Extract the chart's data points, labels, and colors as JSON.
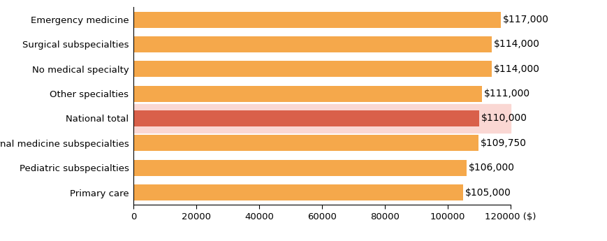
{
  "categories": [
    "Primary care",
    "Pediatric subspecialties",
    "Internal medicine subspecialties",
    "National total",
    "Other specialties",
    "No medical specialty",
    "Surgical subspecialties",
    "Emergency medicine"
  ],
  "values": [
    105000,
    106000,
    109750,
    110000,
    111000,
    114000,
    114000,
    117000
  ],
  "labels": [
    "$105,000",
    "$106,000",
    "$109,750",
    "$110,000",
    "$111,000",
    "$114,000",
    "$114,000",
    "$117,000"
  ],
  "bar_colors": [
    "#F5A84B",
    "#F5A84B",
    "#F5A84B",
    "#D9604A",
    "#F5A84B",
    "#F5A84B",
    "#F5A84B",
    "#F5A84B"
  ],
  "highlight_index": 3,
  "highlight_bg": "#FAD7D3",
  "xlim": [
    0,
    120000
  ],
  "xticks": [
    0,
    20000,
    40000,
    60000,
    80000,
    100000,
    120000
  ],
  "xtick_labels": [
    "0",
    "20000",
    "40000",
    "60000",
    "80000",
    "100000",
    "120000 ($)"
  ],
  "bar_height": 0.65,
  "label_fontsize": 10,
  "tick_fontsize": 9.5,
  "figure_bg": "#FFFFFF"
}
